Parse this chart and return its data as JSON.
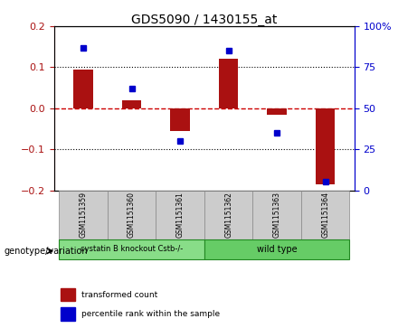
{
  "title": "GDS5090 / 1430155_at",
  "samples": [
    "GSM1151359",
    "GSM1151360",
    "GSM1151361",
    "GSM1151362",
    "GSM1151363",
    "GSM1151364"
  ],
  "bar_values": [
    0.095,
    0.02,
    -0.055,
    0.12,
    -0.015,
    -0.185
  ],
  "dot_values_pct": [
    87,
    62,
    30,
    85,
    35,
    5
  ],
  "ylim_left": [
    -0.2,
    0.2
  ],
  "ylim_right": [
    0,
    100
  ],
  "bar_color": "#aa1111",
  "dot_color": "#0000cc",
  "zero_line_color": "#cc0000",
  "grid_color": "#000000",
  "genotype_groups": [
    {
      "label": "cystatin B knockout Cstb-/-",
      "color": "#88dd88"
    },
    {
      "label": "wild type",
      "color": "#66cc66"
    }
  ],
  "genotype_label": "genotype/variation",
  "legend_bar_label": "transformed count",
  "legend_dot_label": "percentile rank within the sample",
  "yticks_left": [
    -0.2,
    -0.1,
    0.0,
    0.1,
    0.2
  ],
  "yticks_right": [
    0,
    25,
    50,
    75,
    100
  ],
  "background_color": "#ffffff"
}
